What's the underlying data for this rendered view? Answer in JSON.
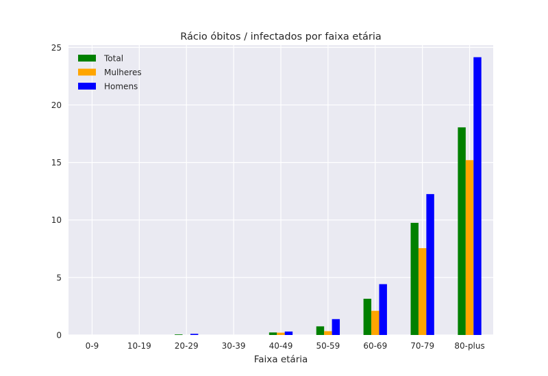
{
  "chart_data": {
    "type": "bar",
    "title": "Rácio óbitos / infectados por faixa etária",
    "xlabel": "Faixa etária",
    "ylabel": "",
    "categories": [
      "0-9",
      "10-19",
      "20-29",
      "30-39",
      "40-49",
      "50-59",
      "60-69",
      "70-79",
      "80-plus"
    ],
    "ylim": [
      0,
      25.2
    ],
    "yticks": [
      "0",
      "5",
      "10",
      "15",
      "20",
      "25"
    ],
    "grid": true,
    "legend_position": "top-left",
    "background": "#eaeaf2",
    "series": [
      {
        "name": "Total",
        "color": "#008000",
        "values": [
          0,
          0,
          0.05,
          0,
          0.22,
          0.75,
          3.15,
          9.75,
          18.05
        ]
      },
      {
        "name": "Mulheres",
        "color": "#ffa500",
        "values": [
          0,
          0,
          0,
          0,
          0.2,
          0.33,
          2.1,
          7.55,
          15.2
        ]
      },
      {
        "name": "Homens",
        "color": "#0000ff",
        "values": [
          0,
          0,
          0.1,
          0,
          0.3,
          1.38,
          4.42,
          12.25,
          24.15
        ]
      }
    ]
  }
}
